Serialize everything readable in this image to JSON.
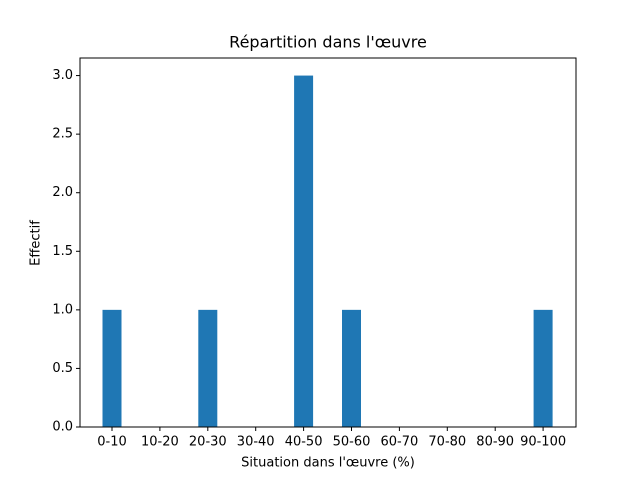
{
  "chart_data": {
    "type": "bar",
    "title": "Répartition dans l'œuvre",
    "x_label": "Situation dans l'œuvre (%)",
    "y_label": "Effectif",
    "categories": [
      "0-10",
      "10-20",
      "20-30",
      "30-40",
      "40-50",
      "50-60",
      "60-70",
      "70-80",
      "80-90",
      "90-100"
    ],
    "values": [
      1,
      0,
      1,
      0,
      3,
      1,
      0,
      0,
      0,
      1
    ],
    "color": "#1f77b4",
    "ylim": [
      0,
      3.15
    ],
    "yticks": [
      {
        "value": 0,
        "label": "0.0"
      },
      0.5,
      {
        "value": 1,
        "label": "1.0"
      },
      1.5,
      {
        "value": 2,
        "label": "2.0"
      },
      2.5,
      {
        "value": 3,
        "label": "3.0"
      }
    ],
    "grid": false
  }
}
